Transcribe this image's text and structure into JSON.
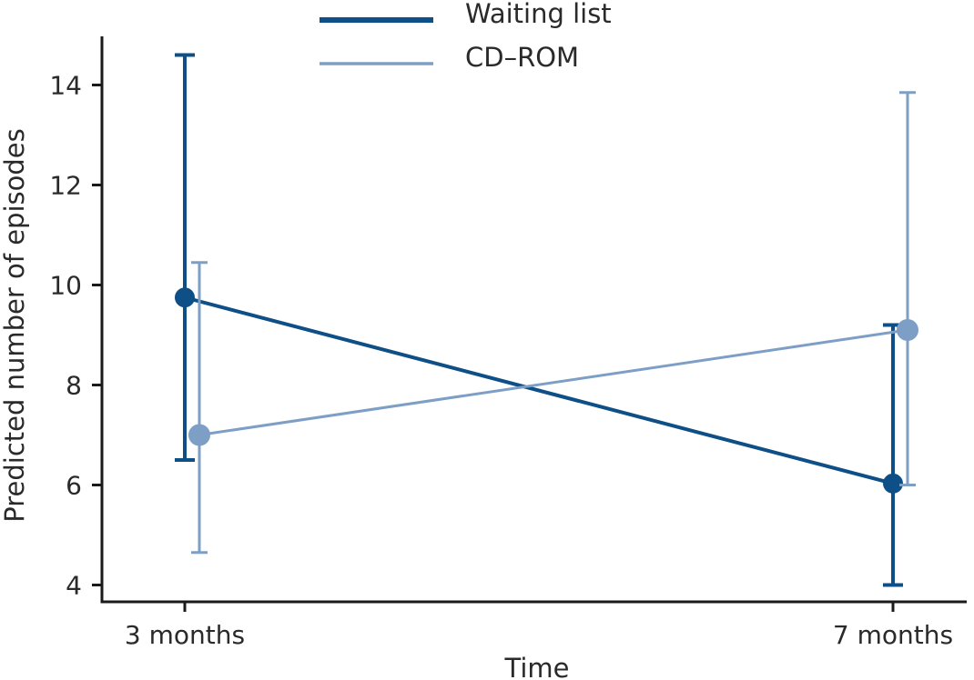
{
  "chart_data": {
    "type": "line",
    "title": "",
    "xlabel": "Time",
    "ylabel": "Predicted number of episodes",
    "categories": [
      "3 months",
      "7 months"
    ],
    "ylim": [
      3.6,
      15
    ],
    "yticks": [
      4,
      6,
      8,
      10,
      12,
      14
    ],
    "grid": false,
    "legend_placement": "top-center",
    "series": [
      {
        "name": "Waiting list",
        "color": "#0d4f86",
        "values": [
          9.75,
          6.03
        ],
        "error_low": [
          6.5,
          4.0
        ],
        "error_high": [
          14.6,
          9.2
        ]
      },
      {
        "name": "CD–ROM",
        "color": "#7d9fc6",
        "values": [
          7.0,
          9.1
        ],
        "error_low": [
          4.65,
          6.0
        ],
        "error_high": [
          10.45,
          13.85
        ]
      }
    ]
  }
}
